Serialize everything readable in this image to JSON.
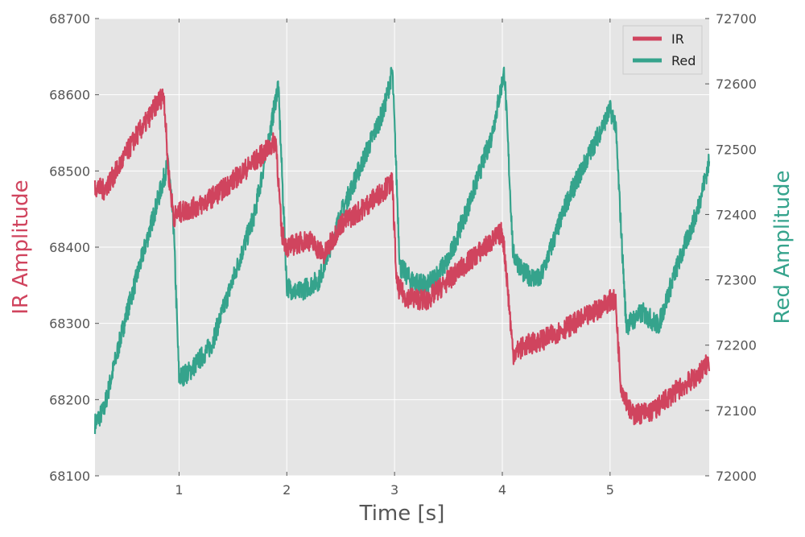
{
  "chart_data": {
    "type": "line",
    "xlabel": "Time [s]",
    "ylabel_left": "IR Amplitude",
    "ylabel_right": "Red Amplitude",
    "xlim": [
      0.22,
      5.92
    ],
    "ylim_left": [
      68100,
      68700
    ],
    "ylim_right": [
      72000,
      72700
    ],
    "x_ticks": [
      1,
      2,
      3,
      4,
      5
    ],
    "y_ticks_left": [
      68100,
      68200,
      68300,
      68400,
      68500,
      68600,
      68700
    ],
    "y_ticks_right": [
      72000,
      72100,
      72200,
      72300,
      72400,
      72500,
      72600,
      72700
    ],
    "grid": true,
    "legend": "top-right",
    "colors": {
      "plot_bg": "#e5e5e5",
      "grid": "#ffffff",
      "IR": "#d0445e",
      "Red": "#35a38c"
    },
    "series": [
      {
        "name": "IR",
        "axis": "left",
        "color": "#d0445e",
        "noise": 14,
        "x": [
          0.22,
          0.3,
          0.4,
          0.5,
          0.6,
          0.7,
          0.8,
          0.86,
          0.9,
          0.95,
          1.0,
          1.2,
          1.4,
          1.6,
          1.8,
          1.9,
          1.95,
          2.0,
          2.2,
          2.35,
          2.5,
          2.7,
          2.9,
          2.98,
          3.02,
          3.1,
          3.3,
          3.45,
          3.6,
          3.8,
          4.0,
          4.03,
          4.1,
          4.2,
          4.4,
          4.6,
          4.8,
          5.0,
          5.05,
          5.1,
          5.2,
          5.4,
          5.6,
          5.8,
          5.92
        ],
        "y": [
          68480,
          68475,
          68495,
          68520,
          68545,
          68565,
          68590,
          68600,
          68500,
          68440,
          68445,
          68455,
          68475,
          68500,
          68525,
          68540,
          68420,
          68400,
          68410,
          68390,
          68430,
          68450,
          68475,
          68485,
          68350,
          68335,
          68330,
          68350,
          68370,
          68395,
          68420,
          68380,
          68260,
          68270,
          68280,
          68295,
          68310,
          68330,
          68330,
          68220,
          68180,
          68185,
          68210,
          68230,
          68250
        ]
      },
      {
        "name": "Red",
        "axis": "right",
        "color": "#35a38c",
        "noise": 16,
        "x": [
          0.22,
          0.3,
          0.4,
          0.5,
          0.6,
          0.7,
          0.8,
          0.9,
          0.95,
          1.0,
          1.1,
          1.3,
          1.5,
          1.7,
          1.85,
          1.92,
          2.0,
          2.1,
          2.3,
          2.5,
          2.7,
          2.9,
          2.98,
          3.05,
          3.15,
          3.3,
          3.5,
          3.7,
          3.9,
          4.02,
          4.1,
          4.2,
          4.35,
          4.6,
          4.8,
          5.0,
          5.05,
          5.15,
          5.3,
          5.45,
          5.6,
          5.8,
          5.92
        ],
        "y": [
          72080,
          72100,
          72170,
          72240,
          72300,
          72360,
          72420,
          72480,
          72380,
          72150,
          72160,
          72200,
          72300,
          72400,
          72530,
          72600,
          72290,
          72280,
          72300,
          72400,
          72480,
          72560,
          72620,
          72320,
          72300,
          72290,
          72330,
          72420,
          72520,
          72620,
          72340,
          72310,
          72300,
          72420,
          72490,
          72560,
          72540,
          72230,
          72250,
          72230,
          72310,
          72400,
          72480
        ]
      }
    ]
  }
}
